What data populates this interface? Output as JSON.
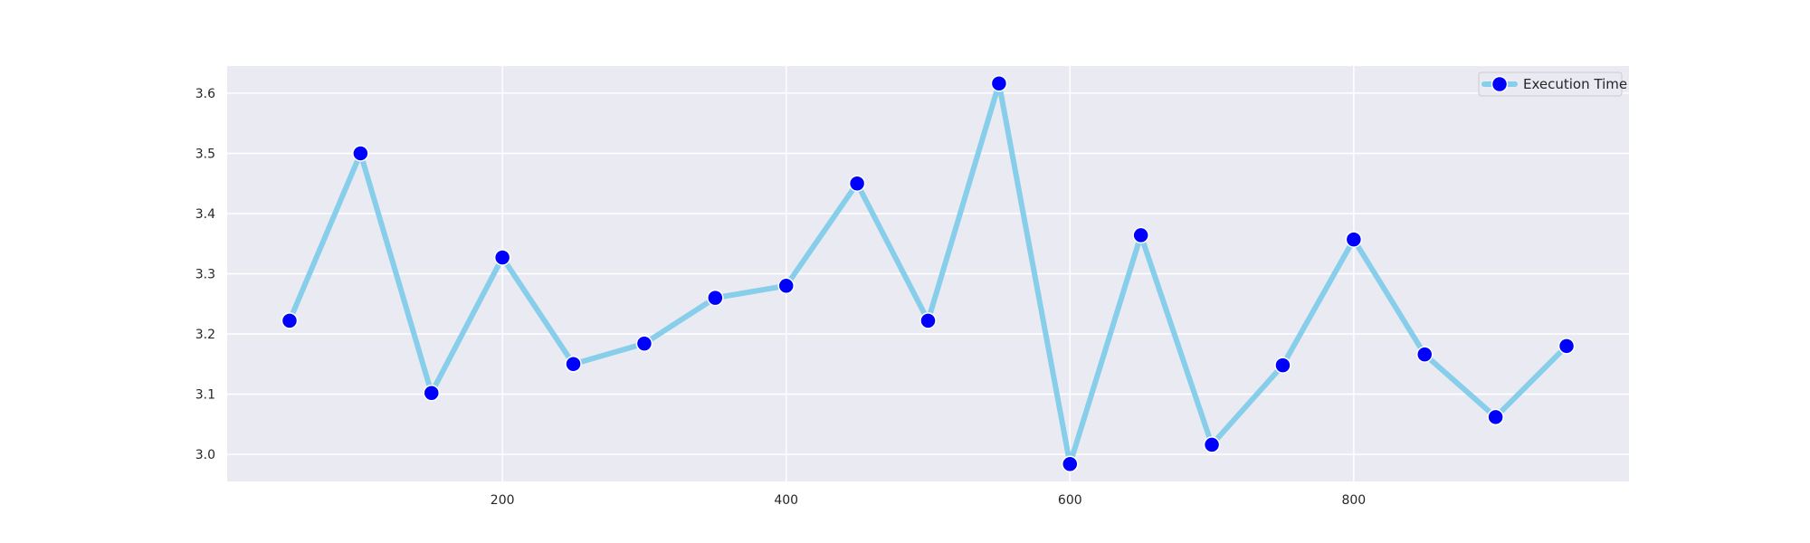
{
  "chart_data": {
    "type": "line",
    "title": "",
    "xlabel": "",
    "ylabel": "",
    "x": [
      50,
      100,
      150,
      200,
      250,
      300,
      350,
      400,
      450,
      500,
      550,
      600,
      650,
      700,
      750,
      800,
      850,
      900,
      950
    ],
    "series": [
      {
        "name": "Execution Time",
        "values": [
          3.222,
          3.5,
          3.102,
          3.327,
          3.15,
          3.184,
          3.26,
          3.28,
          3.45,
          3.222,
          3.616,
          2.984,
          3.364,
          3.016,
          3.148,
          3.357,
          3.166,
          3.062,
          3.18
        ],
        "line_color": "#87CEEB",
        "marker_color": "#0000FF"
      }
    ],
    "x_ticks": [
      200,
      400,
      600,
      800
    ],
    "y_ticks": [
      3.0,
      3.1,
      3.2,
      3.3,
      3.4,
      3.5,
      3.6
    ],
    "xlim": [
      6,
      994
    ],
    "ylim": [
      2.955,
      3.645
    ],
    "grid": true,
    "legend_position": "top-right",
    "colors": {
      "plot_background": "#EAEAF2",
      "grid": "#FFFFFF",
      "text": "#262626"
    }
  }
}
